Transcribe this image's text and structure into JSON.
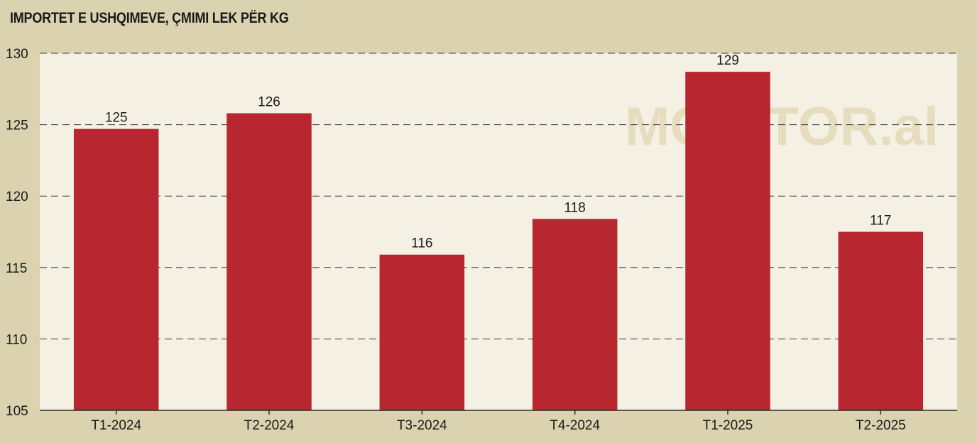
{
  "chart_data": {
    "type": "bar",
    "title": "IMPORTET E USHQIMEVE, ÇMIMI LEK PËR KG",
    "categories": [
      "T1-2024",
      "T2-2024",
      "T3-2024",
      "T4-2024",
      "T1-2025",
      "T2-2025"
    ],
    "values": [
      124.7,
      125.8,
      115.9,
      118.4,
      128.7,
      117.5
    ],
    "value_labels": [
      "125",
      "126",
      "116",
      "118",
      "129",
      "117"
    ],
    "ylim": [
      105,
      130
    ],
    "yticks": [
      "105",
      "110",
      "115",
      "120",
      "125",
      "130"
    ],
    "xlabel": "",
    "ylabel": "",
    "grid": true,
    "legend": "none",
    "bar_color": "#b8262f",
    "plot_background": "#f4f0e4"
  },
  "watermark": "MONITOR.al"
}
